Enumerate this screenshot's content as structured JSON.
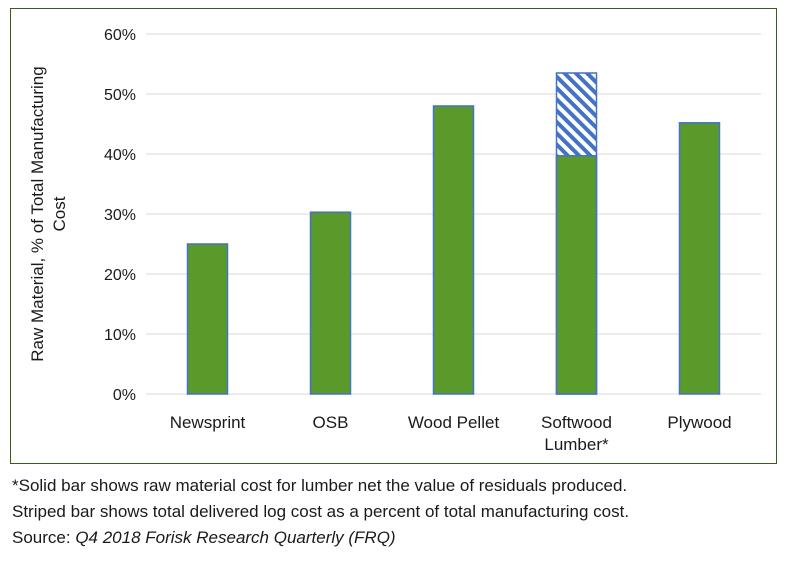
{
  "chart_data": {
    "type": "bar",
    "title": "",
    "xlabel": "",
    "ylabel_lines": [
      "Raw Material, % of Total Manufacturing",
      "Cost"
    ],
    "ylim": [
      0,
      60
    ],
    "yticks": [
      0,
      10,
      20,
      30,
      40,
      50,
      60
    ],
    "ytick_labels": [
      "0%",
      "10%",
      "20%",
      "30%",
      "40%",
      "50%",
      "60%"
    ],
    "grid": true,
    "categories": [
      {
        "name": "newsprint",
        "label_lines": [
          "Newsprint"
        ]
      },
      {
        "name": "osb",
        "label_lines": [
          "OSB"
        ]
      },
      {
        "name": "wood-pellet",
        "label_lines": [
          "Wood Pellet"
        ]
      },
      {
        "name": "softwood-lumber",
        "label_lines": [
          "Softwood",
          "Lumber*"
        ]
      },
      {
        "name": "plywood",
        "label_lines": [
          "Plywood"
        ]
      }
    ],
    "series": [
      {
        "name": "Raw material cost (solid)",
        "style": "solid",
        "values": [
          25,
          30.3,
          48,
          39.7,
          45.2
        ]
      },
      {
        "name": "Total delivered log cost (striped)",
        "style": "striped",
        "values": [
          null,
          null,
          null,
          53.5,
          null
        ]
      }
    ],
    "colors": {
      "bar_fill": "#5a9a2a",
      "bar_edge": "#4472c4",
      "stripe": "#4472c4",
      "grid": "#d9d9d9",
      "frame": "#3d5a1f"
    }
  },
  "footnote": {
    "line1": "*Solid bar shows raw material cost for lumber net the value of residuals produced.",
    "line2": "Striped bar shows total delivered log cost as a percent of total manufacturing cost.",
    "line3_prefix": "Source: ",
    "line3_source": "Q4 2018 Forisk Research Quarterly (FRQ)"
  }
}
